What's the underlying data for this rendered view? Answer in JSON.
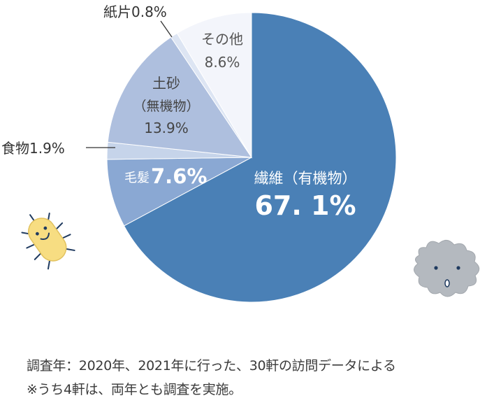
{
  "chart_data": {
    "type": "pie",
    "slices": [
      {
        "label": "繊維（有機物）",
        "value": 67.1,
        "value_label": "67.1%",
        "color": "#4a80b6"
      },
      {
        "label": "毛髪",
        "value": 7.6,
        "value_label": "7.6%",
        "color": "#8aa8d3"
      },
      {
        "label": "食物",
        "value": 1.9,
        "value_label": "1.9%",
        "color": "#c6d4ea"
      },
      {
        "label": "土砂（無機物）",
        "value": 13.9,
        "value_label": "13.9%",
        "color": "#aebfde"
      },
      {
        "label": "紙片",
        "value": 0.8,
        "value_label": "0.8%",
        "color": "#dde5f3"
      },
      {
        "label": "その他",
        "value": 8.6,
        "value_label": "8.6%",
        "color": "#f3f5fb"
      }
    ],
    "text_labels": {
      "fiber_name": "繊維（有機物）",
      "fiber_value": "67. 1%",
      "hair_name": "毛髪",
      "hair_value": "7.6%",
      "food": "食物1.9%",
      "soil_name": "土砂",
      "soil_sub": "（無機物）",
      "soil_value": "13.9%",
      "paper": "紙片0.8%",
      "other_name": "その他",
      "other_value": "8.6%"
    }
  },
  "notes": {
    "line1": "調査年：2020年、2021年に行った、30軒の訪問データによる",
    "line2": "※うち4軒は、両年とも調査を実施。"
  },
  "decorations": {
    "bacteria_color": "#f7dd82",
    "dust_color": "#b4b9bf"
  }
}
